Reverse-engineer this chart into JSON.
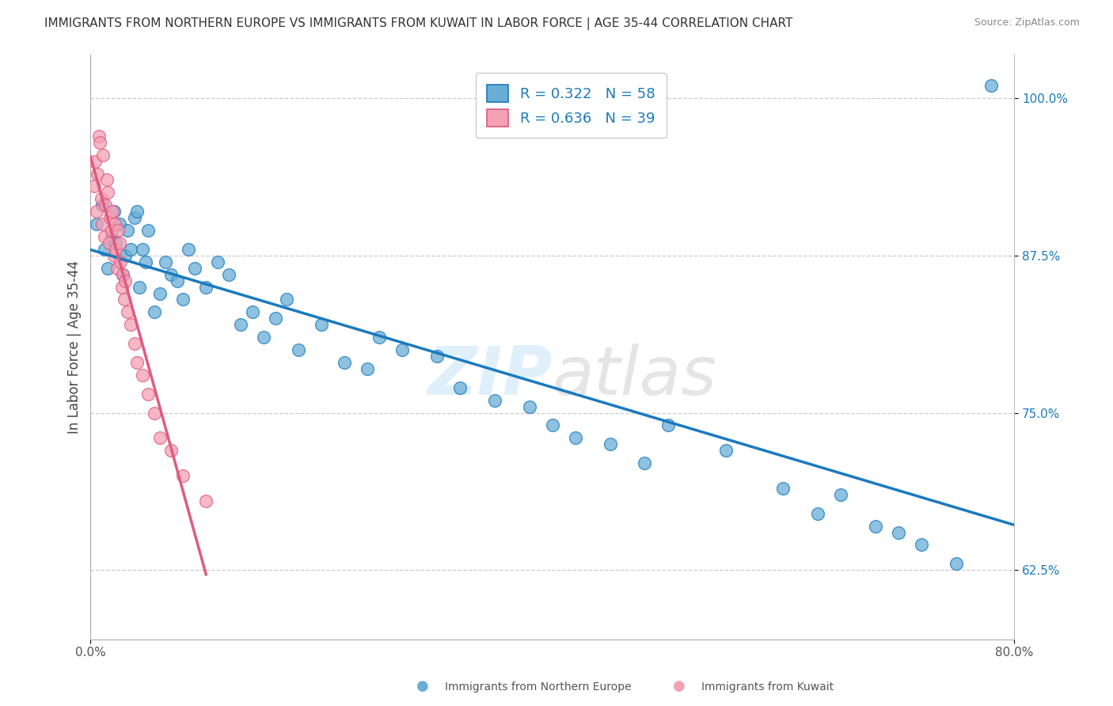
{
  "title": "IMMIGRANTS FROM NORTHERN EUROPE VS IMMIGRANTS FROM KUWAIT IN LABOR FORCE | AGE 35-44 CORRELATION CHART",
  "source": "Source: ZipAtlas.com",
  "ylabel": "In Labor Force | Age 35-44",
  "xlim": [
    0.0,
    80.0
  ],
  "ylim": [
    57.0,
    103.5
  ],
  "ytick_values": [
    62.5,
    75.0,
    87.5,
    100.0
  ],
  "xtick_values": [
    0.0,
    80.0
  ],
  "blue_R": 0.322,
  "blue_N": 58,
  "pink_R": 0.636,
  "pink_N": 39,
  "blue_color": "#6aaed6",
  "pink_color": "#f4a0b5",
  "blue_line_color": "#1a7abf",
  "pink_line_color": "#e05a80",
  "legend_label_blue": "Immigrants from Northern Europe",
  "legend_label_pink": "Immigrants from Kuwait",
  "background_color": "#ffffff",
  "grid_color": "#cccccc",
  "title_color": "#333333",
  "blue_scatter_x": [
    0.5,
    1.0,
    1.2,
    1.5,
    1.8,
    2.0,
    2.2,
    2.5,
    2.8,
    3.0,
    3.2,
    3.5,
    3.8,
    4.0,
    4.2,
    4.5,
    4.8,
    5.0,
    5.5,
    6.0,
    6.5,
    7.0,
    7.5,
    8.0,
    8.5,
    9.0,
    10.0,
    11.0,
    12.0,
    13.0,
    14.0,
    15.0,
    16.0,
    17.0,
    18.0,
    20.0,
    22.0,
    24.0,
    25.0,
    27.0,
    30.0,
    32.0,
    35.0,
    38.0,
    40.0,
    42.0,
    45.0,
    48.0,
    50.0,
    55.0,
    60.0,
    63.0,
    65.0,
    68.0,
    70.0,
    72.0,
    75.0,
    78.0
  ],
  "blue_scatter_y": [
    90.0,
    91.5,
    88.0,
    86.5,
    89.0,
    91.0,
    88.5,
    90.0,
    86.0,
    87.5,
    89.5,
    88.0,
    90.5,
    91.0,
    85.0,
    88.0,
    87.0,
    89.5,
    83.0,
    84.5,
    87.0,
    86.0,
    85.5,
    84.0,
    88.0,
    86.5,
    85.0,
    87.0,
    86.0,
    82.0,
    83.0,
    81.0,
    82.5,
    84.0,
    80.0,
    82.0,
    79.0,
    78.5,
    81.0,
    80.0,
    79.5,
    77.0,
    76.0,
    75.5,
    74.0,
    73.0,
    72.5,
    71.0,
    74.0,
    72.0,
    69.0,
    67.0,
    68.5,
    66.0,
    65.5,
    64.5,
    63.0,
    101.0
  ],
  "pink_scatter_x": [
    0.3,
    0.4,
    0.5,
    0.6,
    0.7,
    0.8,
    0.9,
    1.0,
    1.1,
    1.2,
    1.3,
    1.4,
    1.5,
    1.6,
    1.7,
    1.8,
    1.9,
    2.0,
    2.1,
    2.2,
    2.3,
    2.4,
    2.5,
    2.6,
    2.7,
    2.8,
    2.9,
    3.0,
    3.2,
    3.5,
    3.8,
    4.0,
    4.5,
    5.0,
    5.5,
    6.0,
    7.0,
    8.0,
    10.0
  ],
  "pink_scatter_y": [
    93.0,
    95.0,
    91.0,
    94.0,
    97.0,
    96.5,
    92.0,
    90.0,
    95.5,
    89.0,
    91.5,
    93.5,
    92.5,
    88.5,
    90.5,
    89.5,
    91.0,
    87.5,
    90.0,
    88.0,
    86.5,
    89.5,
    88.5,
    87.0,
    85.0,
    86.0,
    84.0,
    85.5,
    83.0,
    82.0,
    80.5,
    79.0,
    78.0,
    76.5,
    75.0,
    73.0,
    72.0,
    70.0,
    68.0
  ]
}
